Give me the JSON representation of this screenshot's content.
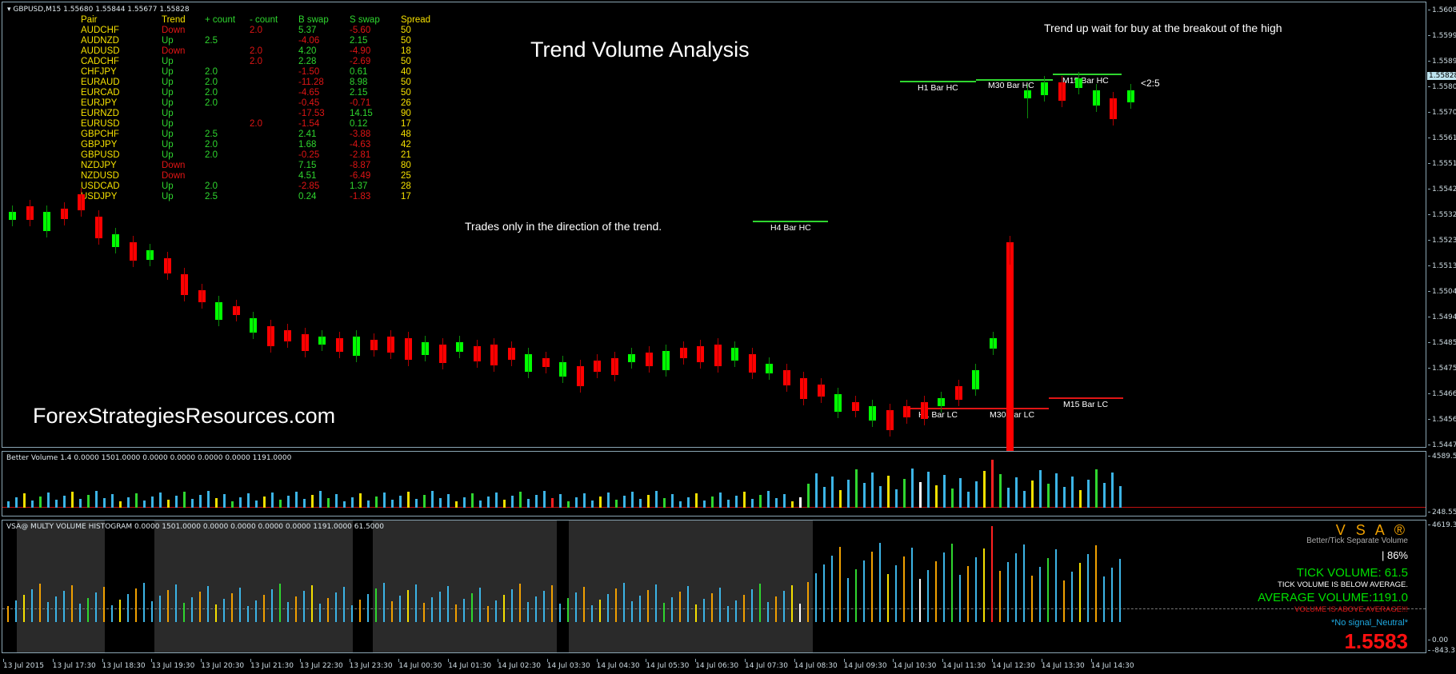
{
  "window": {
    "symbol_line": "GBPUSD,M15  1.55680 1.55844 1.55677 1.55828"
  },
  "pairs_table": {
    "headers": [
      "Pair",
      "Trend",
      "+ count",
      "- count",
      "B swap",
      "S swap",
      "Spread"
    ],
    "rows": [
      {
        "pair": "AUDCHF",
        "trend": "Down",
        "pc": "",
        "mc": "2.0",
        "b": "5.37",
        "s": "-5.60",
        "sp": "50"
      },
      {
        "pair": "AUDNZD",
        "trend": "Up",
        "pc": "2.5",
        "mc": "",
        "b": "-4.06",
        "s": "2.15",
        "sp": "50"
      },
      {
        "pair": "AUDUSD",
        "trend": "Down",
        "pc": "",
        "mc": "2.0",
        "b": "4.20",
        "s": "-4.90",
        "sp": "18"
      },
      {
        "pair": "CADCHF",
        "trend": "Up",
        "pc": "",
        "mc": "2.0",
        "b": "2.28",
        "s": "-2.69",
        "sp": "50"
      },
      {
        "pair": "CHFJPY",
        "trend": "Up",
        "pc": "2.0",
        "mc": "",
        "b": "-1.50",
        "s": "0.61",
        "sp": "40"
      },
      {
        "pair": "EURAUD",
        "trend": "Up",
        "pc": "2.0",
        "mc": "",
        "b": "-11.28",
        "s": "8.98",
        "sp": "50"
      },
      {
        "pair": "EURCAD",
        "trend": "Up",
        "pc": "2.0",
        "mc": "",
        "b": "-4.65",
        "s": "2.15",
        "sp": "50"
      },
      {
        "pair": "EURJPY",
        "trend": "Up",
        "pc": "2.0",
        "mc": "",
        "b": "-0.45",
        "s": "-0.71",
        "sp": "26"
      },
      {
        "pair": "EURNZD",
        "trend": "Up",
        "pc": "",
        "mc": "",
        "b": "-17.53",
        "s": "14.15",
        "sp": "90"
      },
      {
        "pair": "EURUSD",
        "trend": "Up",
        "pc": "",
        "mc": "2.0",
        "b": "-1.54",
        "s": "0.12",
        "sp": "17"
      },
      {
        "pair": "GBPCHF",
        "trend": "Up",
        "pc": "2.5",
        "mc": "",
        "b": "2.41",
        "s": "-3.88",
        "sp": "48"
      },
      {
        "pair": "GBPJPY",
        "trend": "Up",
        "pc": "2.0",
        "mc": "",
        "b": "1.68",
        "s": "-4.63",
        "sp": "42"
      },
      {
        "pair": "GBPUSD",
        "trend": "Up",
        "pc": "2.0",
        "mc": "",
        "b": "-0.25",
        "s": "-2.81",
        "sp": "21"
      },
      {
        "pair": "NZDJPY",
        "trend": "Down",
        "pc": "",
        "mc": "",
        "b": "7.15",
        "s": "-8.87",
        "sp": "80"
      },
      {
        "pair": "NZDUSD",
        "trend": "Down",
        "pc": "",
        "mc": "",
        "b": "4.51",
        "s": "-6.49",
        "sp": "25"
      },
      {
        "pair": "USDCAD",
        "trend": "Up",
        "pc": "2.0",
        "mc": "",
        "b": "-2.85",
        "s": "1.37",
        "sp": "28"
      },
      {
        "pair": "USDJPY",
        "trend": "Up",
        "pc": "2.5",
        "mc": "",
        "b": "0.24",
        "s": "-1.83",
        "sp": "17"
      }
    ]
  },
  "chart": {
    "title": "Trend Volume Analysis",
    "note_top": "Trend up  wait for buy at the breakout of the high",
    "note_mid": "Trades only in the direction of the trend.",
    "ratio_label": "<2:5",
    "brand": "ForexStrategiesResources.com",
    "levels": {
      "h4_hc": "H4 Bar HC",
      "h1_hc": "H1 Bar HC",
      "m30_hc": "M30 Bar HC",
      "m15_hc": "M15 Bar HC",
      "h1_lc": "H1 Bar LC",
      "m30_lc": "M30 Bar LC",
      "m15_lc": "M15 Bar LC"
    },
    "price_axis": [
      "1.56085",
      "1.55990",
      "1.55895",
      "1.55800",
      "1.55705",
      "1.55610",
      "1.55515",
      "1.55420",
      "1.55325",
      "1.55230",
      "1.55135",
      "1.55040",
      "1.54945",
      "1.54850",
      "1.54755",
      "1.54660",
      "1.54565",
      "1.54470"
    ],
    "current_price": "1.55828"
  },
  "volume_pane": {
    "title": "Better Volume 1.4 0.0000 1501.0000 0.0000 0.0000 0.0000 0.0000 1191.0000",
    "axis_top": "4589.55",
    "axis_bottom": "248.55"
  },
  "vsa_pane": {
    "title": "VSA@ MULTY VOLUME HISTOGRAM 0.0000 1501.0000 0.0000 0.0000 0.0000 0.0000 1191.0000 61.5000",
    "axis_top": "4619.3",
    "axis_zero": "0.00",
    "axis_bottom": "-843.3",
    "brand": "V S A ®",
    "subtitle": "Better/Tick Separate Volume",
    "percent": "|  86%",
    "tick_volume": "TICK VOLUME: 61.5",
    "tick_note": "TICK VOLUME IS BELOW AVERAGE.",
    "avg_volume": "AVERAGE VOLUME:1191.0",
    "avg_note": "VOLUME IS ABOVE AVERAGE!!!",
    "signal": "*No signal_Neutral*",
    "price": "1.5583"
  },
  "time_axis": [
    "13 Jul 2015",
    "13 Jul 17:30",
    "13 Jul 18:30",
    "13 Jul 19:30",
    "13 Jul 20:30",
    "13 Jul 21:30",
    "13 Jul 22:30",
    "13 Jul 23:30",
    "14 Jul 00:30",
    "14 Jul 01:30",
    "14 Jul 02:30",
    "14 Jul 03:30",
    "14 Jul 04:30",
    "14 Jul 05:30",
    "14 Jul 06:30",
    "14 Jul 07:30",
    "14 Jul 08:30",
    "14 Jul 09:30",
    "14 Jul 10:30",
    "14 Jul 11:30",
    "14 Jul 12:30",
    "14 Jul 13:30",
    "14 Jul 14:30"
  ],
  "colors": {
    "bull": "#00ff00",
    "bear": "#ff0000",
    "label_yellow": "#f5e000",
    "vsa_orange": "#f0a000",
    "vsa_cyan": "#1ea8e0",
    "bar_blue": "#3cb4e6"
  }
}
